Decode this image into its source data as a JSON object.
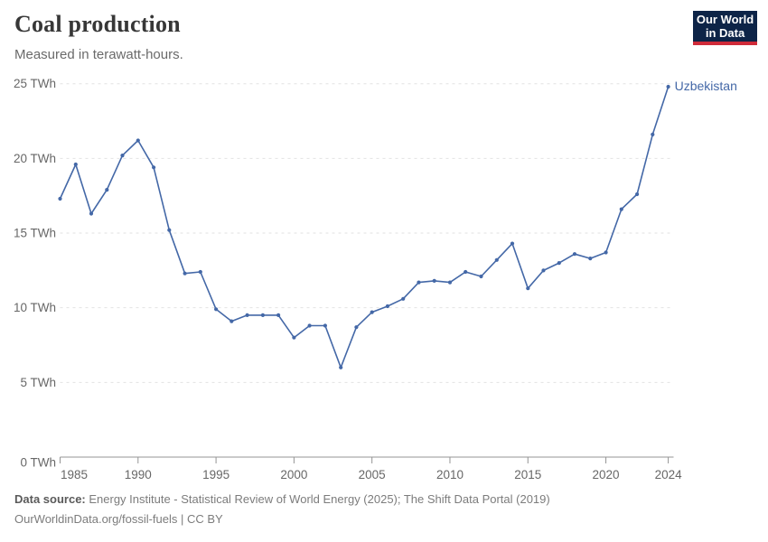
{
  "header": {
    "title": "Coal production",
    "subtitle": "Measured in terawatt-hours."
  },
  "logo": {
    "line1": "Our World",
    "line2": "in Data",
    "bg_color": "#0d2447",
    "accent_color": "#cf2b39"
  },
  "chart_data": {
    "type": "line",
    "title": "Coal production",
    "subtitle": "Measured in terawatt-hours.",
    "unit": "TWh",
    "x": [
      1985,
      1986,
      1987,
      1988,
      1989,
      1990,
      1991,
      1992,
      1993,
      1994,
      1995,
      1996,
      1997,
      1998,
      1999,
      2000,
      2001,
      2002,
      2003,
      2004,
      2005,
      2006,
      2007,
      2008,
      2009,
      2010,
      2011,
      2012,
      2013,
      2014,
      2015,
      2016,
      2017,
      2018,
      2019,
      2020,
      2021,
      2022,
      2023,
      2024
    ],
    "series": [
      {
        "name": "Uzbekistan",
        "color": "#4468a7",
        "values": [
          17.3,
          19.6,
          16.3,
          17.9,
          20.2,
          21.2,
          19.4,
          15.2,
          12.3,
          12.4,
          9.9,
          9.1,
          9.5,
          9.5,
          9.5,
          8.0,
          8.8,
          8.8,
          6.0,
          8.7,
          9.7,
          10.1,
          10.6,
          11.7,
          11.8,
          11.7,
          12.4,
          12.1,
          13.2,
          14.3,
          11.3,
          12.5,
          13.0,
          13.6,
          13.3,
          13.7,
          16.6,
          17.6,
          21.6,
          24.8
        ]
      }
    ],
    "x_ticks": [
      1985,
      1990,
      1995,
      2000,
      2005,
      2010,
      2015,
      2020,
      2024
    ],
    "x_tick_labels": [
      "1985",
      "1990",
      "1995",
      "2000",
      "2005",
      "2010",
      "2015",
      "2020",
      "2024"
    ],
    "y_ticks": [
      0,
      5,
      10,
      15,
      20,
      25
    ],
    "y_tick_labels": [
      "0 TWh",
      "5 TWh",
      "10 TWh",
      "15 TWh",
      "20 TWh",
      "25 TWh"
    ],
    "xlim": [
      1985,
      2024.35
    ],
    "ylim": [
      0,
      25
    ],
    "grid": "horizontal-dashed",
    "legend_position": "end-of-line-label"
  },
  "footer": {
    "source_label": "Data source:",
    "source_text": " Energy Institute - Statistical Review of World Energy (2025); The Shift Data Portal (2019)",
    "credit_line": "OurWorldinData.org/fossil-fuels | CC BY"
  },
  "colors": {
    "line": "#4468a7",
    "grid": "#e2e2e2",
    "axis": "#949494",
    "tick_text": "#676767",
    "title": "#373737",
    "subtitle": "#6a6a6a"
  }
}
